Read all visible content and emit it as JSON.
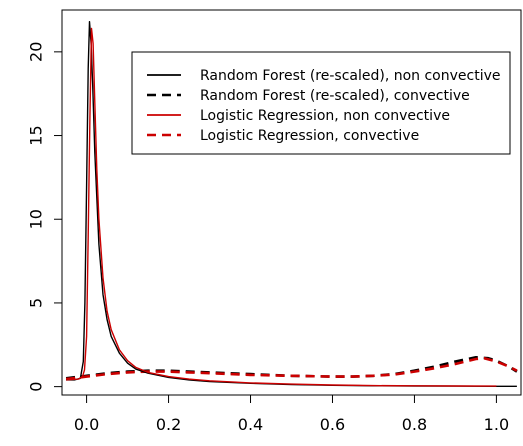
{
  "chart_data": {
    "type": "line",
    "title": "",
    "xlabel": "",
    "ylabel": "",
    "xlim": [
      -0.06,
      1.06
    ],
    "ylim": [
      -0.5,
      22.5
    ],
    "x_ticks": [
      0.0,
      0.2,
      0.4,
      0.6,
      0.8,
      1.0
    ],
    "x_tick_labels": [
      "0.0",
      "0.2",
      "0.4",
      "0.6",
      "0.8",
      "1.0"
    ],
    "y_ticks": [
      0,
      5,
      10,
      15,
      20
    ],
    "y_tick_labels": [
      "0",
      "5",
      "10",
      "15",
      "20"
    ],
    "grid": false,
    "legend_position": "top-right",
    "series": [
      {
        "name": "Random Forest (re-scaled), non convective",
        "color": "#000000",
        "dash": "solid",
        "points": [
          [
            -0.05,
            0.4
          ],
          [
            -0.03,
            0.4
          ],
          [
            -0.015,
            0.5
          ],
          [
            -0.008,
            1.5
          ],
          [
            -0.004,
            5
          ],
          [
            0.0,
            12
          ],
          [
            0.004,
            19
          ],
          [
            0.007,
            21.8
          ],
          [
            0.011,
            20.5
          ],
          [
            0.015,
            18
          ],
          [
            0.02,
            14
          ],
          [
            0.03,
            8.5
          ],
          [
            0.04,
            5.5
          ],
          [
            0.05,
            4.0
          ],
          [
            0.06,
            3.0
          ],
          [
            0.08,
            2.0
          ],
          [
            0.1,
            1.4
          ],
          [
            0.12,
            1.05
          ],
          [
            0.15,
            0.8
          ],
          [
            0.2,
            0.55
          ],
          [
            0.25,
            0.4
          ],
          [
            0.3,
            0.3
          ],
          [
            0.4,
            0.2
          ],
          [
            0.5,
            0.12
          ],
          [
            0.6,
            0.08
          ],
          [
            0.7,
            0.05
          ],
          [
            0.8,
            0.04
          ],
          [
            0.9,
            0.03
          ],
          [
            1.0,
            0.02
          ],
          [
            1.05,
            0.02
          ]
        ]
      },
      {
        "name": "Random Forest (re-scaled), convective",
        "color": "#000000",
        "dash": "dashed",
        "points": [
          [
            -0.05,
            0.5
          ],
          [
            0.0,
            0.65
          ],
          [
            0.05,
            0.8
          ],
          [
            0.1,
            0.9
          ],
          [
            0.15,
            0.95
          ],
          [
            0.2,
            0.95
          ],
          [
            0.25,
            0.9
          ],
          [
            0.3,
            0.85
          ],
          [
            0.4,
            0.75
          ],
          [
            0.5,
            0.65
          ],
          [
            0.6,
            0.6
          ],
          [
            0.65,
            0.6
          ],
          [
            0.7,
            0.65
          ],
          [
            0.75,
            0.75
          ],
          [
            0.8,
            0.95
          ],
          [
            0.85,
            1.2
          ],
          [
            0.9,
            1.5
          ],
          [
            0.95,
            1.75
          ],
          [
            0.98,
            1.7
          ],
          [
            1.0,
            1.55
          ],
          [
            1.03,
            1.2
          ],
          [
            1.05,
            0.9
          ]
        ]
      },
      {
        "name": "Logistic Regression, non convective",
        "color": "#cc0000",
        "dash": "solid",
        "points": [
          [
            -0.05,
            0.4
          ],
          [
            -0.02,
            0.45
          ],
          [
            -0.01,
            0.6
          ],
          [
            -0.005,
            1
          ],
          [
            0.0,
            3
          ],
          [
            0.004,
            9
          ],
          [
            0.008,
            16
          ],
          [
            0.012,
            21.4
          ],
          [
            0.016,
            20.5
          ],
          [
            0.02,
            17
          ],
          [
            0.025,
            13
          ],
          [
            0.03,
            10
          ],
          [
            0.04,
            6.5
          ],
          [
            0.05,
            4.5
          ],
          [
            0.06,
            3.4
          ],
          [
            0.08,
            2.2
          ],
          [
            0.1,
            1.55
          ],
          [
            0.12,
            1.15
          ],
          [
            0.15,
            0.85
          ],
          [
            0.2,
            0.6
          ],
          [
            0.25,
            0.45
          ],
          [
            0.3,
            0.35
          ],
          [
            0.4,
            0.22
          ],
          [
            0.5,
            0.15
          ],
          [
            0.6,
            0.1
          ],
          [
            0.7,
            0.06
          ],
          [
            0.8,
            0.05
          ],
          [
            0.9,
            0.04
          ],
          [
            1.0,
            0.03
          ]
        ]
      },
      {
        "name": "Logistic Regression, convective",
        "color": "#cc0000",
        "dash": "dashed",
        "points": [
          [
            -0.05,
            0.45
          ],
          [
            0.0,
            0.6
          ],
          [
            0.05,
            0.75
          ],
          [
            0.1,
            0.85
          ],
          [
            0.15,
            0.9
          ],
          [
            0.2,
            0.9
          ],
          [
            0.25,
            0.85
          ],
          [
            0.3,
            0.8
          ],
          [
            0.4,
            0.7
          ],
          [
            0.5,
            0.65
          ],
          [
            0.6,
            0.6
          ],
          [
            0.65,
            0.6
          ],
          [
            0.7,
            0.65
          ],
          [
            0.75,
            0.72
          ],
          [
            0.8,
            0.9
          ],
          [
            0.85,
            1.1
          ],
          [
            0.9,
            1.35
          ],
          [
            0.95,
            1.65
          ],
          [
            0.97,
            1.7
          ],
          [
            1.0,
            1.5
          ],
          [
            1.03,
            1.2
          ],
          [
            1.05,
            0.95
          ]
        ]
      }
    ]
  }
}
